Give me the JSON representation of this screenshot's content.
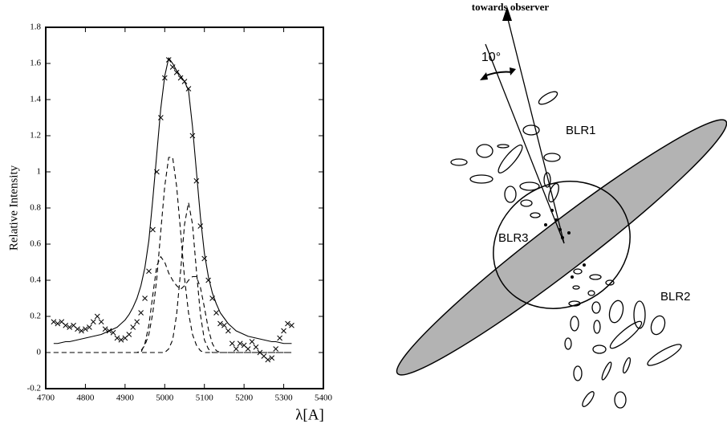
{
  "chart_data": {
    "type": "line",
    "y_label": "Relative Intensity",
    "x_label": "λ[A]",
    "xlim": [
      4700,
      5400
    ],
    "xticks": [
      4700,
      4800,
      4900,
      5000,
      5100,
      5200,
      5300,
      5400
    ],
    "ylim": [
      -0.2,
      1.8
    ],
    "yticks": [
      -0.2,
      0,
      0.2,
      0.4,
      0.6,
      0.8,
      1,
      1.2,
      1.4,
      1.6,
      1.8
    ],
    "x": [
      4720,
      4730,
      4740,
      4750,
      4760,
      4770,
      4780,
      4790,
      4800,
      4810,
      4820,
      4830,
      4840,
      4850,
      4860,
      4870,
      4880,
      4890,
      4900,
      4910,
      4920,
      4930,
      4940,
      4950,
      4960,
      4970,
      4980,
      4990,
      5000,
      5010,
      5020,
      5030,
      5040,
      5050,
      5060,
      5070,
      5080,
      5090,
      5100,
      5110,
      5120,
      5130,
      5140,
      5150,
      5160,
      5170,
      5180,
      5190,
      5200,
      5210,
      5220,
      5230,
      5240,
      5250,
      5260,
      5270,
      5280,
      5290,
      5300,
      5310,
      5320
    ],
    "series": [
      {
        "color": "#000000",
        "style": "cross",
        "values": [
          0.17,
          0.16,
          0.17,
          0.15,
          0.14,
          0.15,
          0.13,
          0.12,
          0.13,
          0.14,
          0.17,
          0.2,
          0.17,
          0.13,
          0.12,
          0.11,
          0.08,
          0.07,
          0.08,
          0.1,
          0.14,
          0.17,
          0.22,
          0.3,
          0.45,
          0.68,
          1.0,
          1.3,
          1.52,
          1.62,
          1.58,
          1.55,
          1.52,
          1.5,
          1.46,
          1.2,
          0.95,
          0.7,
          0.52,
          0.4,
          0.3,
          0.22,
          0.16,
          0.15,
          0.12,
          0.05,
          0.02,
          0.05,
          0.04,
          0.02,
          0.06,
          0.03,
          0.0,
          -0.02,
          -0.04,
          -0.03,
          0.02,
          0.08,
          0.12,
          0.16,
          0.15
        ]
      },
      {
        "color": "#000000",
        "style": "solid",
        "values": [
          0.05,
          0.05,
          0.055,
          0.06,
          0.06,
          0.065,
          0.07,
          0.075,
          0.08,
          0.085,
          0.09,
          0.095,
          0.1,
          0.11,
          0.12,
          0.13,
          0.14,
          0.16,
          0.18,
          0.21,
          0.25,
          0.3,
          0.37,
          0.47,
          0.62,
          0.85,
          1.1,
          1.35,
          1.53,
          1.63,
          1.6,
          1.56,
          1.53,
          1.5,
          1.45,
          1.25,
          1.0,
          0.75,
          0.55,
          0.42,
          0.33,
          0.27,
          0.22,
          0.19,
          0.16,
          0.14,
          0.12,
          0.11,
          0.1,
          0.09,
          0.085,
          0.08,
          0.075,
          0.07,
          0.065,
          0.06,
          0.06,
          0.055,
          0.05,
          0.05,
          0.05
        ]
      },
      {
        "color": "#000000",
        "style": "dashed",
        "values": [
          0,
          0,
          0,
          0,
          0,
          0,
          0,
          0,
          0,
          0,
          0,
          0,
          0,
          0,
          0,
          0,
          0,
          0,
          0,
          0,
          0,
          0,
          0,
          0.05,
          0.15,
          0.32,
          0.48,
          0.53,
          0.5,
          0.44,
          0.4,
          0.37,
          0.35,
          0.37,
          0.4,
          0.42,
          0.42,
          0.36,
          0.25,
          0.13,
          0.05,
          0.01,
          0,
          0,
          0,
          0,
          0,
          0,
          0,
          0,
          0,
          0,
          0,
          0,
          0,
          0,
          0,
          0,
          0,
          0,
          0
        ]
      },
      {
        "color": "#000000",
        "style": "dashed",
        "values": [
          0,
          0,
          0,
          0,
          0,
          0,
          0,
          0,
          0,
          0,
          0,
          0,
          0,
          0,
          0,
          0,
          0,
          0,
          0,
          0,
          0,
          0,
          0.01,
          0.04,
          0.1,
          0.22,
          0.41,
          0.67,
          0.92,
          1.08,
          1.08,
          0.92,
          0.67,
          0.41,
          0.22,
          0.1,
          0.04,
          0.01,
          0,
          0,
          0,
          0,
          0,
          0,
          0,
          0,
          0,
          0,
          0,
          0,
          0,
          0,
          0,
          0,
          0,
          0,
          0,
          0,
          0,
          0,
          0
        ]
      },
      {
        "color": "#000000",
        "style": "dashed",
        "values": [
          0,
          0,
          0,
          0,
          0,
          0,
          0,
          0,
          0,
          0,
          0,
          0,
          0,
          0,
          0,
          0,
          0,
          0,
          0,
          0,
          0,
          0,
          0,
          0,
          0,
          0,
          0,
          0,
          0,
          0.02,
          0.07,
          0.21,
          0.45,
          0.71,
          0.83,
          0.71,
          0.45,
          0.21,
          0.07,
          0.02,
          0,
          0,
          0,
          0,
          0,
          0,
          0,
          0,
          0,
          0,
          0,
          0,
          0,
          0,
          0,
          0,
          0,
          0,
          0,
          0,
          0
        ]
      }
    ]
  },
  "diagram": {
    "labels": {
      "observer": "towards observer",
      "angle": "10°",
      "blr1": "BLR1",
      "blr2": "BLR2",
      "blr3": "BLR3"
    }
  }
}
